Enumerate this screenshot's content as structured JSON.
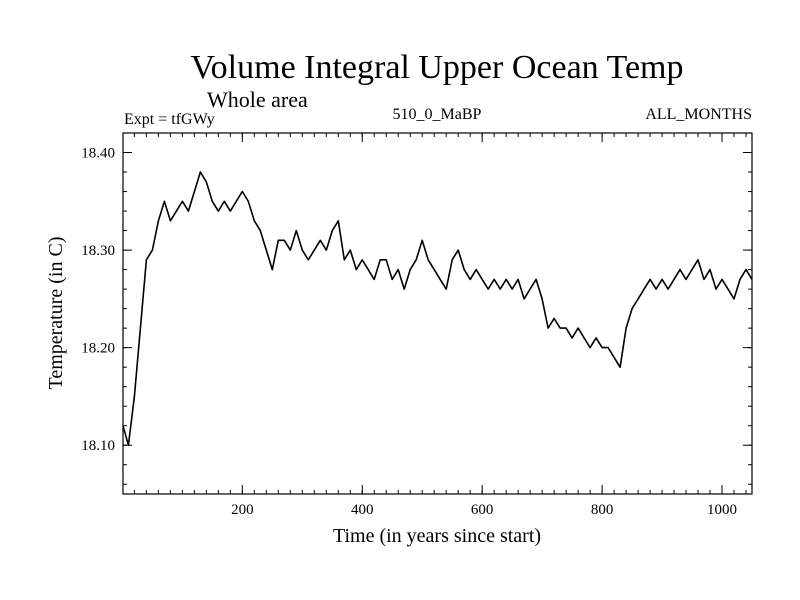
{
  "chart_data": {
    "type": "line",
    "title": "Volume Integral Upper Ocean Temp",
    "subtitle": "Whole area",
    "expt_label": "Expt = tfGWy",
    "center_label": "510_0_MaBP",
    "right_label": "ALL_MONTHS",
    "xlabel": "Time (in years since start)",
    "ylabel": "Temperature (in C)",
    "xlim": [
      1,
      1050
    ],
    "ylim": [
      18.05,
      18.42
    ],
    "x_ticks": [
      200,
      400,
      600,
      800,
      1000
    ],
    "x_tick_labels": [
      "200",
      "400",
      "600",
      "800",
      "1000"
    ],
    "y_ticks": [
      18.1,
      18.2,
      18.3,
      18.4
    ],
    "y_tick_labels": [
      "18.10",
      "18.20",
      "18.30",
      "18.40"
    ],
    "grid": false,
    "series": [
      {
        "name": "Temperature",
        "x": [
          1,
          10,
          20,
          30,
          40,
          50,
          60,
          70,
          80,
          90,
          100,
          110,
          120,
          130,
          140,
          150,
          160,
          170,
          180,
          190,
          200,
          210,
          220,
          230,
          240,
          250,
          260,
          270,
          280,
          290,
          300,
          310,
          320,
          330,
          340,
          350,
          360,
          370,
          380,
          390,
          400,
          410,
          420,
          430,
          440,
          450,
          460,
          470,
          480,
          490,
          500,
          510,
          520,
          530,
          540,
          550,
          560,
          570,
          580,
          590,
          600,
          610,
          620,
          630,
          640,
          650,
          660,
          670,
          680,
          690,
          700,
          710,
          720,
          730,
          740,
          750,
          760,
          770,
          780,
          790,
          800,
          810,
          820,
          830,
          840,
          850,
          860,
          870,
          880,
          890,
          900,
          910,
          920,
          930,
          940,
          950,
          960,
          970,
          980,
          990,
          1000,
          1010,
          1020,
          1030,
          1040,
          1050
        ],
        "values": [
          18.12,
          18.1,
          18.15,
          18.22,
          18.29,
          18.3,
          18.33,
          18.35,
          18.33,
          18.34,
          18.35,
          18.34,
          18.36,
          18.38,
          18.37,
          18.35,
          18.34,
          18.35,
          18.34,
          18.35,
          18.36,
          18.35,
          18.33,
          18.32,
          18.3,
          18.28,
          18.31,
          18.31,
          18.3,
          18.32,
          18.3,
          18.29,
          18.3,
          18.31,
          18.3,
          18.32,
          18.33,
          18.29,
          18.3,
          18.28,
          18.29,
          18.28,
          18.27,
          18.29,
          18.29,
          18.27,
          18.28,
          18.26,
          18.28,
          18.29,
          18.31,
          18.29,
          18.28,
          18.27,
          18.26,
          18.29,
          18.3,
          18.28,
          18.27,
          18.28,
          18.27,
          18.26,
          18.27,
          18.26,
          18.27,
          18.26,
          18.27,
          18.25,
          18.26,
          18.27,
          18.25,
          18.22,
          18.23,
          18.22,
          18.22,
          18.21,
          18.22,
          18.21,
          18.2,
          18.21,
          18.2,
          18.2,
          18.19,
          18.18,
          18.22,
          18.24,
          18.25,
          18.26,
          18.27,
          18.26,
          18.27,
          18.26,
          18.27,
          18.28,
          18.27,
          18.28,
          18.29,
          18.27,
          18.28,
          18.26,
          18.27,
          18.26,
          18.25,
          18.27,
          18.28,
          18.27
        ]
      }
    ]
  }
}
